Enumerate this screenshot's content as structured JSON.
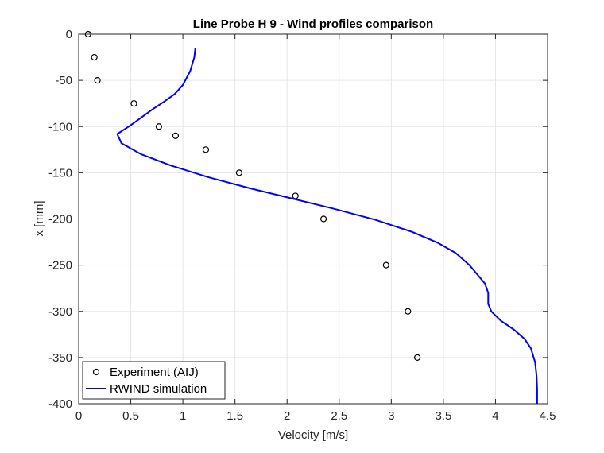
{
  "chart_data": {
    "type": "scatter",
    "title": "Line Probe H 9 - Wind profiles comparison",
    "xlabel": "Velocity [m/s]",
    "ylabel": "x [mm]",
    "xlim": [
      0,
      4.5
    ],
    "ylim": [
      -400,
      0
    ],
    "x_ticks": [
      0,
      0.5,
      1,
      1.5,
      2,
      2.5,
      3,
      3.5,
      4,
      4.5
    ],
    "x_tick_labels": [
      "0",
      "0.5",
      "1",
      "1.5",
      "2",
      "2.5",
      "3",
      "3.5",
      "4",
      "4.5"
    ],
    "y_ticks": [
      0,
      -50,
      -100,
      -150,
      -200,
      -250,
      -300,
      -350,
      -400
    ],
    "y_tick_labels": [
      "0",
      "-50",
      "-100",
      "-150",
      "-200",
      "-250",
      "-300",
      "-350",
      "-400"
    ],
    "grid": true,
    "legend_position": "bottom-left",
    "series": [
      {
        "name": "Experiment (AIJ)",
        "kind": "scatter",
        "marker": "open-circle",
        "color": "#000000",
        "x": [
          0.09,
          0.15,
          0.18,
          0.53,
          0.77,
          0.93,
          1.22,
          1.54,
          2.08,
          2.35,
          2.95,
          3.16,
          3.25
        ],
        "y": [
          0,
          -25,
          -50,
          -75,
          -100,
          -110,
          -125,
          -150,
          -175,
          -200,
          -250,
          -300,
          -350
        ]
      },
      {
        "name": "RWIND simulation",
        "kind": "line",
        "color": "#0000ff",
        "x": [
          1.12,
          1.11,
          1.07,
          1.0,
          0.92,
          0.82,
          0.7,
          0.58,
          0.48,
          0.37,
          0.41,
          0.6,
          0.88,
          1.25,
          1.65,
          2.05,
          2.45,
          2.85,
          3.2,
          3.45,
          3.62,
          3.75,
          3.84,
          3.9,
          3.93,
          3.93,
          3.96,
          4.05,
          4.18,
          4.28,
          4.34,
          4.38,
          4.395,
          4.4,
          4.4
        ],
        "y": [
          -15,
          -25,
          -40,
          -55,
          -65,
          -73,
          -82,
          -92,
          -100,
          -108,
          -118,
          -130,
          -142,
          -155,
          -167,
          -178,
          -189,
          -201,
          -214,
          -226,
          -237,
          -250,
          -262,
          -270,
          -280,
          -292,
          -300,
          -310,
          -320,
          -330,
          -340,
          -355,
          -370,
          -385,
          -400
        ]
      }
    ]
  }
}
